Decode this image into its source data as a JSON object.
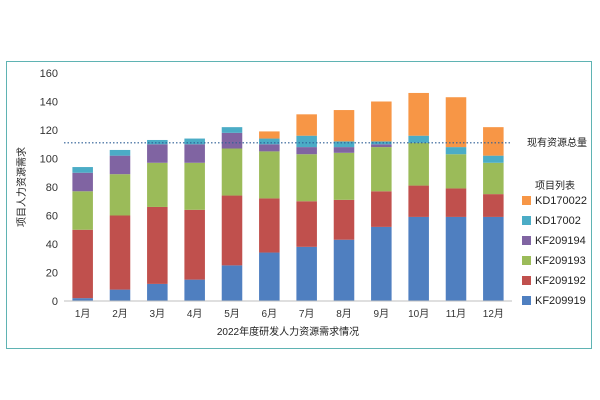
{
  "chart_data": {
    "type": "bar",
    "stacked": true,
    "xlabel": "2022年度研发人力资源需求情况",
    "ylabel": "项目人力资源需求",
    "ylim": [
      0,
      160
    ],
    "yticks": [
      0,
      20,
      40,
      60,
      80,
      100,
      120,
      140,
      160
    ],
    "grid": false,
    "legend_title": "项目列表",
    "legend_position": "right",
    "categories": [
      "1月",
      "2月",
      "3月",
      "4月",
      "5月",
      "6月",
      "7月",
      "8月",
      "9月",
      "10月",
      "11月",
      "12月"
    ],
    "series": [
      {
        "name": "KF209919",
        "color": "#4f7fc0",
        "values": [
          2,
          8,
          12,
          15,
          25,
          34,
          38,
          43,
          52,
          59,
          59,
          59
        ]
      },
      {
        "name": "KF209192",
        "color": "#c0504d",
        "values": [
          48,
          52,
          54,
          49,
          49,
          38,
          32,
          28,
          25,
          22,
          20,
          16
        ]
      },
      {
        "name": "KF209193",
        "color": "#9bbb59",
        "values": [
          27,
          29,
          31,
          33,
          33,
          33,
          33,
          33,
          31,
          30,
          24,
          22
        ]
      },
      {
        "name": "KF209194",
        "color": "#8064a2",
        "values": [
          13,
          13,
          13,
          13,
          11,
          5,
          5,
          4,
          2,
          0,
          0,
          0
        ]
      },
      {
        "name": "KD17002",
        "color": "#4bacc6",
        "values": [
          4,
          4,
          3,
          4,
          4,
          4,
          8,
          4,
          2,
          5,
          5,
          5
        ]
      },
      {
        "name": "KD170022",
        "color": "#f79646",
        "values": [
          0,
          0,
          0,
          0,
          0,
          5,
          15,
          22,
          28,
          30,
          35,
          20
        ]
      }
    ],
    "reference_line": {
      "label": "现有资源总量",
      "value": 111,
      "color": "#2e5f95"
    }
  }
}
